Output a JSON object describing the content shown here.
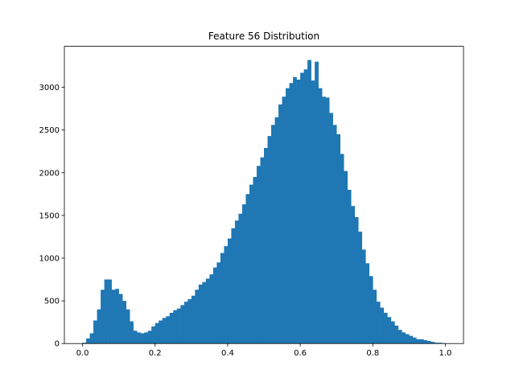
{
  "chart_data": {
    "type": "bar",
    "title": "Feature 56 Distribution",
    "xlabel": "",
    "ylabel": "",
    "xlim": [
      -0.05,
      1.05
    ],
    "ylim": [
      0,
      3480
    ],
    "xticks": [
      0.0,
      0.2,
      0.4,
      0.6,
      0.8,
      1.0
    ],
    "xtick_labels": [
      "0.0",
      "0.2",
      "0.4",
      "0.6",
      "0.8",
      "1.0"
    ],
    "yticks": [
      0,
      500,
      1000,
      1500,
      2000,
      2500,
      3000
    ],
    "ytick_labels": [
      "0",
      "500",
      "1000",
      "1500",
      "2000",
      "2500",
      "3000"
    ],
    "color": "#1f77b4",
    "grid": false,
    "legend": "none",
    "bin_start": 0.0,
    "bin_width": 0.01,
    "values": [
      10,
      60,
      120,
      270,
      400,
      630,
      750,
      750,
      630,
      640,
      580,
      500,
      400,
      260,
      150,
      130,
      120,
      130,
      150,
      200,
      240,
      270,
      300,
      320,
      360,
      390,
      410,
      450,
      490,
      520,
      560,
      630,
      690,
      720,
      760,
      810,
      890,
      950,
      1060,
      1140,
      1230,
      1350,
      1440,
      1520,
      1630,
      1750,
      1860,
      1950,
      2080,
      2180,
      2290,
      2430,
      2560,
      2650,
      2800,
      2890,
      2990,
      3050,
      3120,
      3090,
      3170,
      3210,
      3320,
      3080,
      3300,
      2990,
      2890,
      2880,
      2700,
      2560,
      2450,
      2220,
      2020,
      1800,
      1610,
      1480,
      1310,
      1100,
      940,
      790,
      630,
      490,
      420,
      360,
      310,
      260,
      210,
      160,
      130,
      110,
      90,
      70,
      50,
      50,
      40,
      30,
      20,
      10,
      10,
      5
    ]
  }
}
